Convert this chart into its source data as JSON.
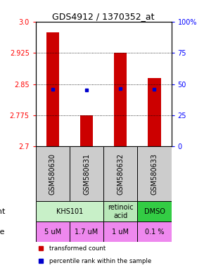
{
  "title": "GDS4912 / 1370352_at",
  "samples": [
    "GSM580630",
    "GSM580631",
    "GSM580632",
    "GSM580633"
  ],
  "bar_bottoms": [
    2.7,
    2.7,
    2.7,
    2.7
  ],
  "bar_tops": [
    2.975,
    2.775,
    2.925,
    2.865
  ],
  "blue_dots": [
    2.838,
    2.836,
    2.84,
    2.838
  ],
  "ylim": [
    2.7,
    3.0
  ],
  "yticks_left": [
    2.7,
    2.775,
    2.85,
    2.925,
    3.0
  ],
  "yticks_right_vals": [
    0,
    25,
    50,
    75,
    100
  ],
  "yticks_right_labels": [
    "0",
    "25",
    "50",
    "75",
    "100%"
  ],
  "bar_color": "#cc0000",
  "dot_color": "#0000cc",
  "agent_spans_info": [
    [
      0,
      2,
      "KHS101",
      "#c8f0c8"
    ],
    [
      2,
      3,
      "retinoic\nacid",
      "#b8e8b8"
    ],
    [
      3,
      4,
      "DMSO",
      "#33cc44"
    ]
  ],
  "dose_row": [
    "5 uM",
    "1.7 uM",
    "1 uM",
    "0.1 %"
  ],
  "dose_color": "#ee88ee",
  "sample_bg": "#cccccc",
  "title_fontsize": 9,
  "tick_fontsize": 7,
  "cell_fontsize": 7,
  "label_fontsize": 8
}
